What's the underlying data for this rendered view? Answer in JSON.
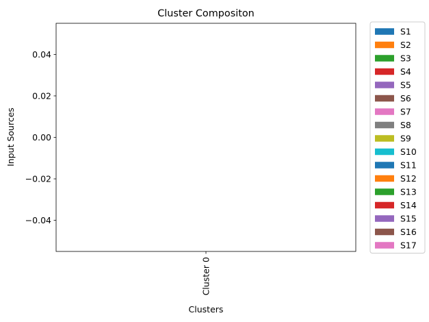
{
  "chart_data": {
    "type": "bar",
    "title": "Cluster Compositon",
    "xlabel": "Clusters",
    "ylabel": "Input Sources",
    "categories": [
      "Cluster 0"
    ],
    "ylim": [
      -0.055,
      0.055
    ],
    "yticks": [
      -0.04,
      -0.02,
      0.0,
      0.02,
      0.04
    ],
    "ytick_labels": [
      "−0.04",
      "−0.02",
      "0.00",
      "0.02",
      "0.04"
    ],
    "stacked": true,
    "grid": false,
    "legend_placement": "outside-right",
    "series": [
      {
        "name": "S1",
        "values": [
          0
        ],
        "color": "#1f77b4"
      },
      {
        "name": "S2",
        "values": [
          0
        ],
        "color": "#ff7f0e"
      },
      {
        "name": "S3",
        "values": [
          0
        ],
        "color": "#2ca02c"
      },
      {
        "name": "S4",
        "values": [
          0
        ],
        "color": "#d62728"
      },
      {
        "name": "S5",
        "values": [
          0
        ],
        "color": "#9467bd"
      },
      {
        "name": "S6",
        "values": [
          0
        ],
        "color": "#8c564b"
      },
      {
        "name": "S7",
        "values": [
          0
        ],
        "color": "#e377c2"
      },
      {
        "name": "S8",
        "values": [
          0
        ],
        "color": "#7f7f7f"
      },
      {
        "name": "S9",
        "values": [
          0
        ],
        "color": "#bcbd22"
      },
      {
        "name": "S10",
        "values": [
          0
        ],
        "color": "#17becf"
      },
      {
        "name": "S11",
        "values": [
          0
        ],
        "color": "#1f77b4"
      },
      {
        "name": "S12",
        "values": [
          0
        ],
        "color": "#ff7f0e"
      },
      {
        "name": "S13",
        "values": [
          0
        ],
        "color": "#2ca02c"
      },
      {
        "name": "S14",
        "values": [
          0
        ],
        "color": "#d62728"
      },
      {
        "name": "S15",
        "values": [
          0
        ],
        "color": "#9467bd"
      },
      {
        "name": "S16",
        "values": [
          0
        ],
        "color": "#8c564b"
      },
      {
        "name": "S17",
        "values": [
          0
        ],
        "color": "#e377c2"
      }
    ]
  }
}
